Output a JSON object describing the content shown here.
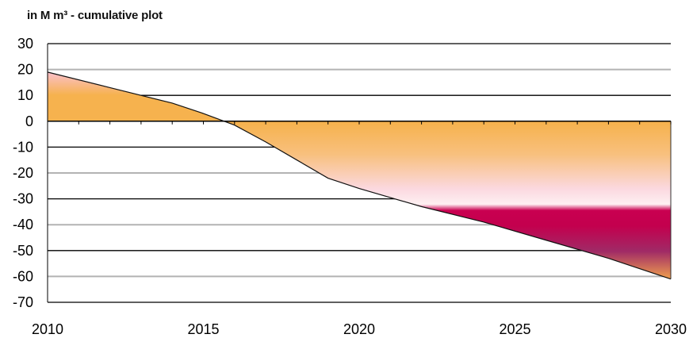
{
  "chart_data": {
    "type": "area",
    "title": "in M m³ - cumulative plot",
    "xlabel": "",
    "ylabel": "",
    "xlim": [
      2010,
      2030
    ],
    "ylim": [
      -70,
      30
    ],
    "x_ticks": [
      "2010",
      "2015",
      "2020",
      "2025",
      "2030"
    ],
    "y_ticks": [
      "30",
      "20",
      "10",
      "0",
      "-10",
      "-20",
      "-30",
      "-40",
      "-50",
      "-60",
      "-70"
    ],
    "grid": true,
    "legend": "none",
    "series": [
      {
        "x": [
          2010,
          2012,
          2014,
          2015,
          2016,
          2017,
          2018,
          2019,
          2020,
          2022,
          2024,
          2026,
          2028,
          2030
        ],
        "values": [
          19,
          13,
          7,
          3,
          -1.5,
          -8,
          -15,
          -22,
          -26,
          -33,
          -39,
          -46,
          -53,
          -61
        ]
      }
    ],
    "colors": {
      "fill_orange": "#f6b24e",
      "fill_pink_light": "#fbd2dc",
      "fill_magenta": "#c8004e",
      "fill_purple": "#a8205a",
      "outline": "#111111",
      "gridline_dark": "#000000",
      "gridline_gray": "#b3b3b3"
    }
  }
}
